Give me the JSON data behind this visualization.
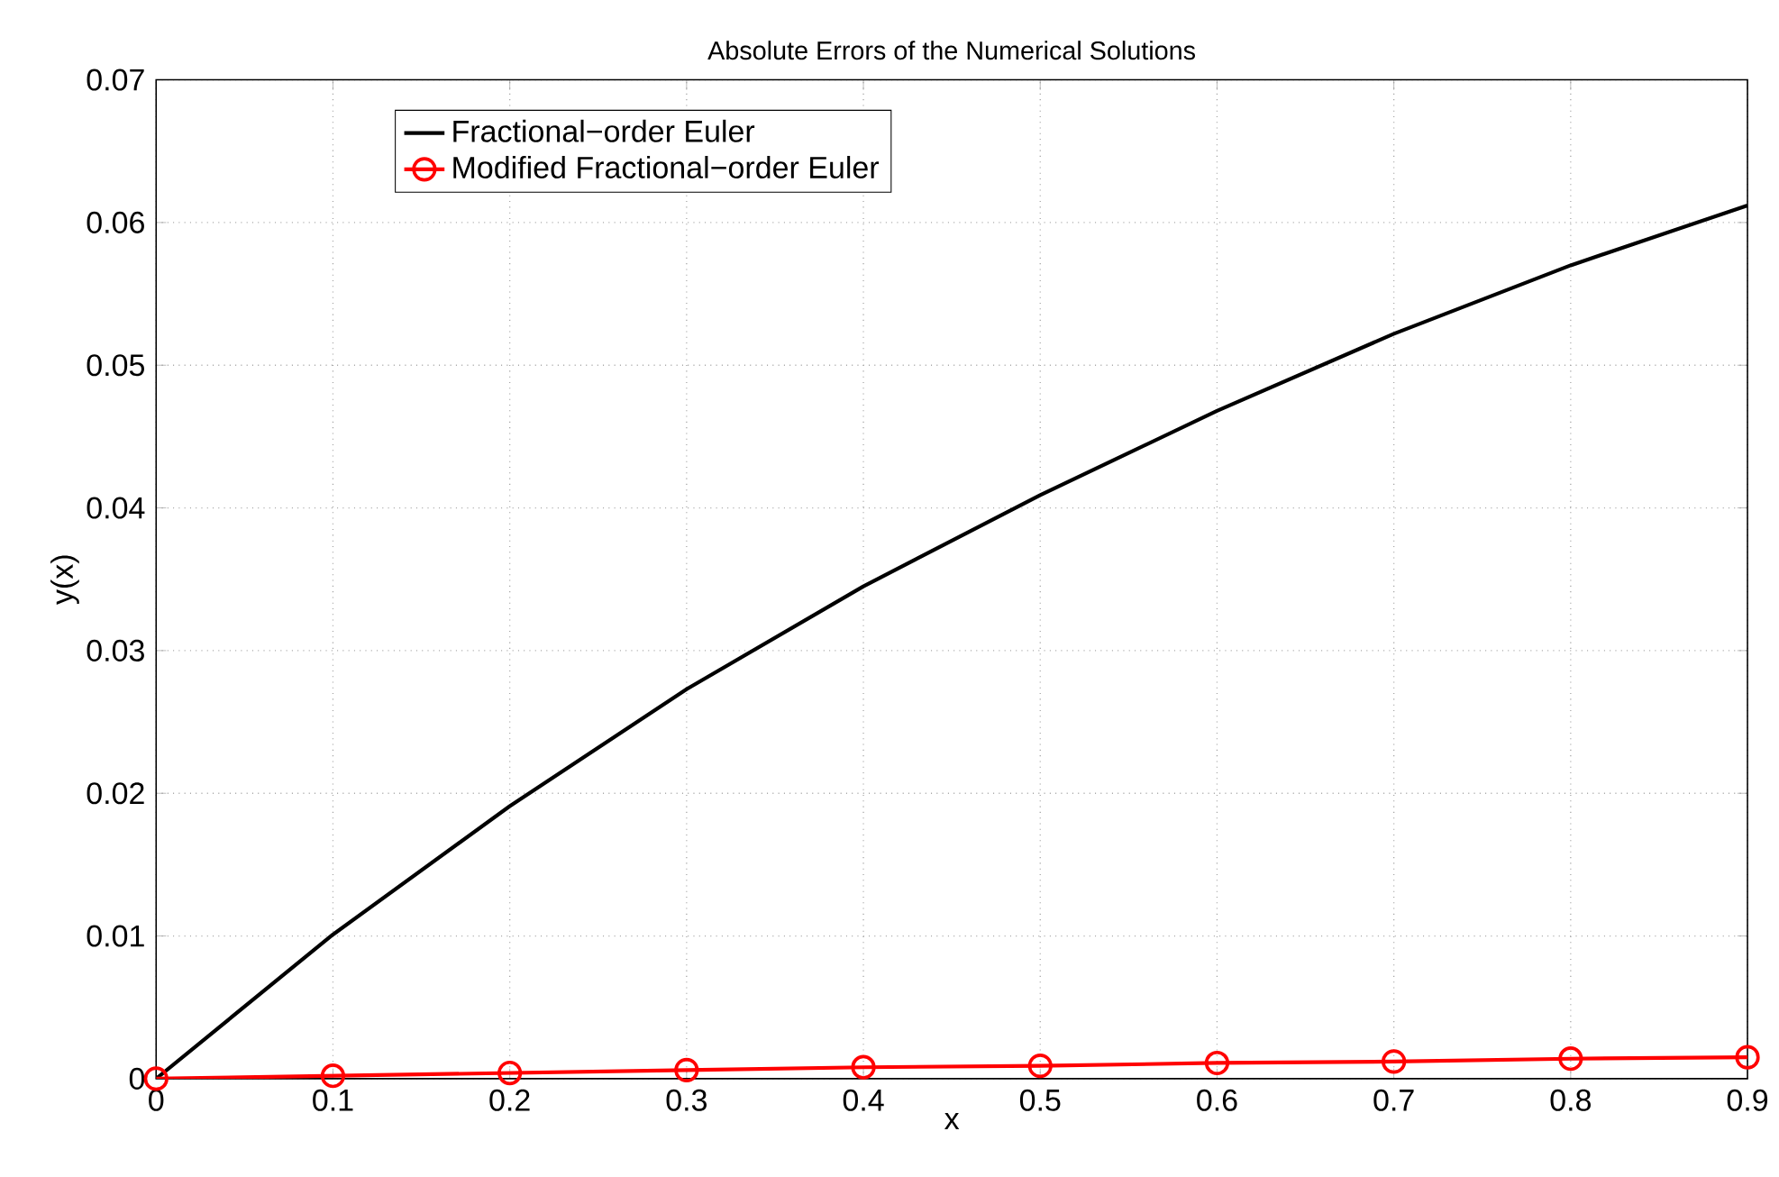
{
  "chart_data": {
    "type": "line",
    "title": "Absolute Errors of the Numerical Solutions",
    "xlabel": "x",
    "ylabel": "y(x)",
    "x": [
      0,
      0.1,
      0.2,
      0.3,
      0.4,
      0.5,
      0.6,
      0.7,
      0.8,
      0.9
    ],
    "series": [
      {
        "name": "Fractional−order Euler",
        "color": "#000000",
        "marker": "none",
        "values": [
          0,
          0.0101,
          0.0191,
          0.0273,
          0.0345,
          0.0409,
          0.0468,
          0.0522,
          0.057,
          0.0612
        ]
      },
      {
        "name": "Modified Fractional−order Euler",
        "color": "#ff0000",
        "marker": "circle",
        "values": [
          0,
          0.0002,
          0.0004,
          0.0006,
          0.0008,
          0.0009,
          0.0011,
          0.0012,
          0.0014,
          0.0015
        ]
      }
    ],
    "xlim": [
      0,
      0.9
    ],
    "ylim": [
      0,
      0.07
    ],
    "xticks": [
      0,
      0.1,
      0.2,
      0.3,
      0.4,
      0.5,
      0.6,
      0.7,
      0.8,
      0.9
    ],
    "yticks": [
      0,
      0.01,
      0.02,
      0.03,
      0.04,
      0.05,
      0.06,
      0.07
    ],
    "grid": true,
    "legend": "top left",
    "line_style": "solid"
  }
}
